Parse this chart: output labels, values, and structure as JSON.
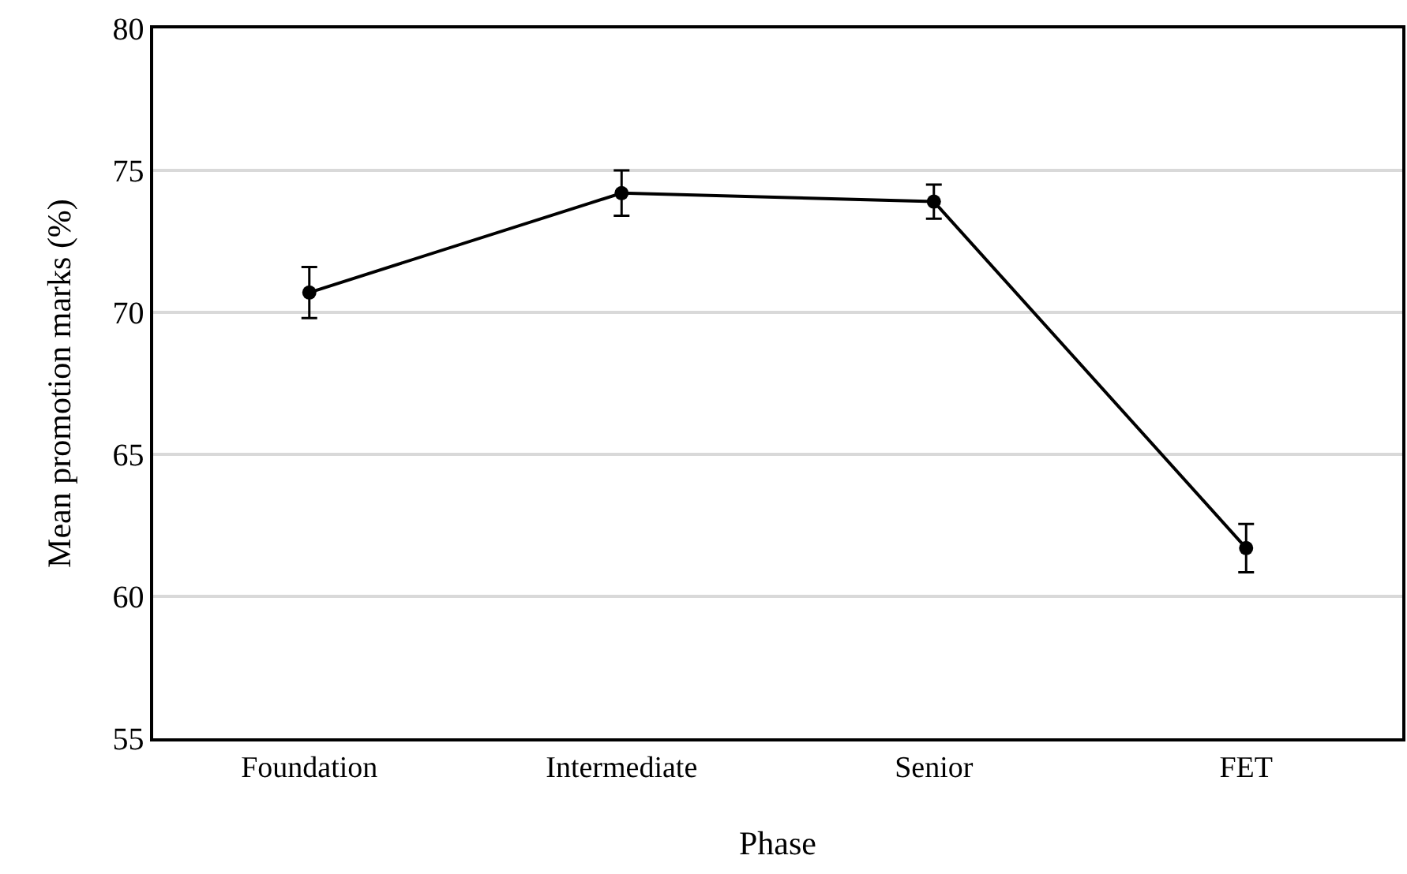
{
  "chart_data": {
    "type": "line",
    "xlabel": "Phase",
    "ylabel": "Mean promotion marks (%)",
    "categories": [
      "Foundation",
      "Intermediate",
      "Senior",
      "FET"
    ],
    "series": [
      {
        "color": "#000000",
        "values": [
          70.7,
          74.2,
          73.9,
          61.7
        ],
        "errors": [
          0.9,
          0.8,
          0.6,
          0.85
        ]
      }
    ],
    "ylim": [
      55,
      80
    ],
    "yticks": [
      55,
      60,
      65,
      70,
      75,
      80
    ],
    "grid": "y",
    "marker": "circle",
    "line_style": "solid"
  }
}
